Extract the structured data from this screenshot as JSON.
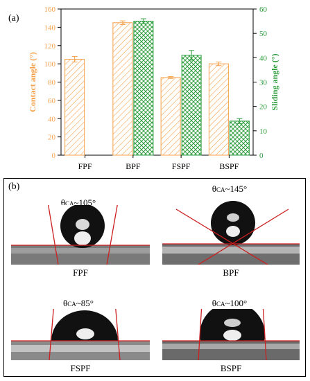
{
  "chart_data": {
    "type": "bar",
    "panel_label": "(a)",
    "categories": [
      "FPF",
      "BPF",
      "FSPF",
      "BSPF"
    ],
    "left_axis": {
      "label": "Contact angle (°)",
      "ylim": [
        0,
        160
      ],
      "ticks": [
        "0",
        "20",
        "40",
        "60",
        "80",
        "100",
        "120",
        "140",
        "160"
      ],
      "color": "#f5a04a"
    },
    "right_axis": {
      "label": "Sliding angle (°)",
      "ylim": [
        0,
        60
      ],
      "ticks": [
        "0",
        "10",
        "20",
        "30",
        "40",
        "50",
        "60"
      ],
      "color": "#2e9e3e"
    },
    "series": [
      {
        "axis": "left",
        "values": [
          105,
          145,
          85,
          100
        ],
        "errors": [
          3,
          2,
          1,
          2
        ],
        "color": "#f5a04a",
        "pattern": "diagonal-hatch"
      },
      {
        "axis": "right",
        "values": [
          null,
          55,
          41,
          14
        ],
        "errors": [
          null,
          1,
          2,
          1
        ],
        "color": "#2e9e3e",
        "pattern": "cross-hatch"
      }
    ],
    "grid": false,
    "legend": "none"
  },
  "panel_b": {
    "label": "(b)",
    "images": [
      {
        "caption": "FPF",
        "theta_prefix": "θ",
        "theta_sub": "CA",
        "theta_value": "~105°"
      },
      {
        "caption": "BPF",
        "theta_prefix": "θ",
        "theta_sub": "CA",
        "theta_value": "~145°"
      },
      {
        "caption": "FSPF",
        "theta_prefix": "θ",
        "theta_sub": "CA",
        "theta_value": "~85°"
      },
      {
        "caption": "BSPF",
        "theta_prefix": "θ",
        "theta_sub": "CA",
        "theta_value": "~100°"
      }
    ]
  }
}
